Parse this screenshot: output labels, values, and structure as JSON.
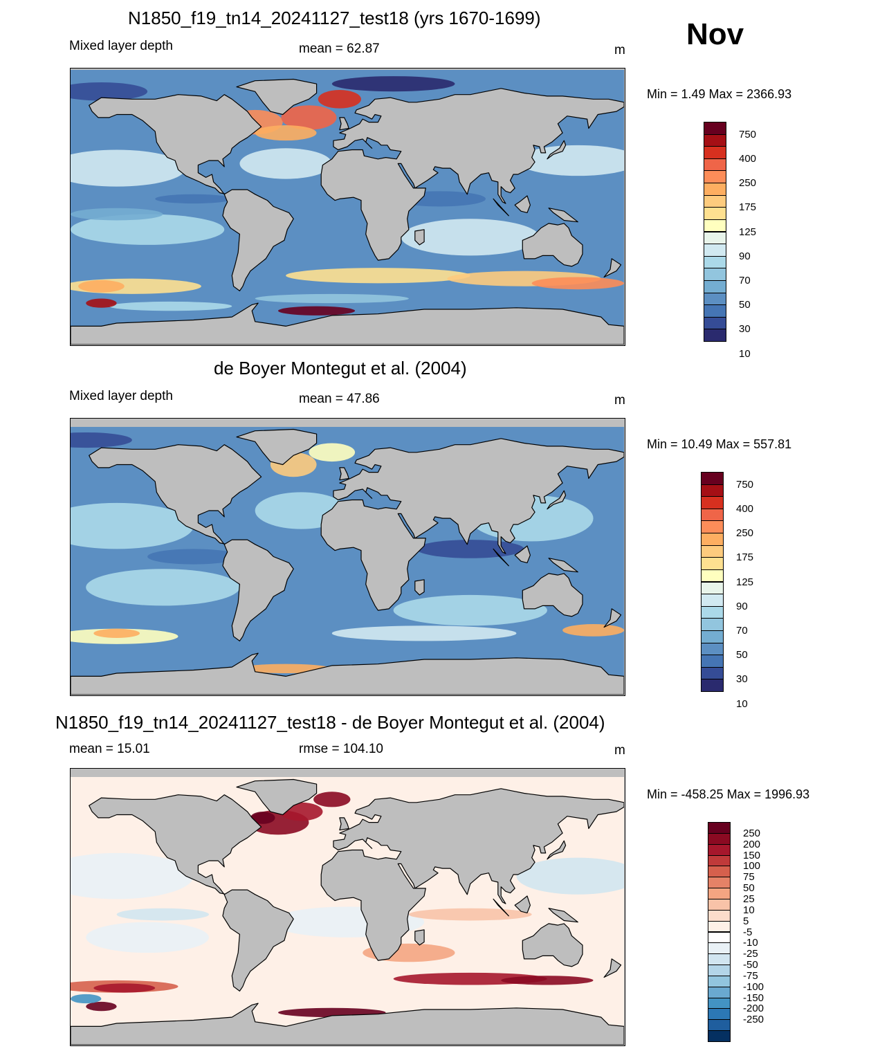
{
  "month": "Nov",
  "panels": [
    {
      "title": "N1850_f19_tn14_20241127_test18 (yrs 1670-1699)",
      "left_label": "Mixed layer depth",
      "center_label": "mean =  62.87",
      "units": "m",
      "minmax": "Min =    1.49 Max = 2366.93",
      "field": "model",
      "colorbar": {
        "labels": [
          "750",
          "400",
          "250",
          "175",
          "125",
          "90",
          "70",
          "50",
          "30",
          "10"
        ],
        "colors": [
          "#67001f",
          "#a50f15",
          "#d7301f",
          "#ef6548",
          "#fc8d59",
          "#fdae61",
          "#fdcb7e",
          "#fee090",
          "#ffffbf",
          "#e8f4ea",
          "#d1e9f1",
          "#abd9e9",
          "#92c5de",
          "#74add1",
          "#5c8fc2",
          "#4575b4",
          "#354c96",
          "#2a2a6e"
        ]
      }
    },
    {
      "title": "de Boyer Montegut et al. (2004)",
      "left_label": "Mixed layer depth",
      "center_label": "mean =  47.86",
      "units": "m",
      "minmax": "Min =  10.49 Max = 557.81",
      "field": "obs",
      "colorbar": {
        "labels": [
          "750",
          "400",
          "250",
          "175",
          "125",
          "90",
          "70",
          "50",
          "30",
          "10"
        ],
        "colors": [
          "#67001f",
          "#a50f15",
          "#d7301f",
          "#ef6548",
          "#fc8d59",
          "#fdae61",
          "#fdcb7e",
          "#fee090",
          "#ffffbf",
          "#e8f4ea",
          "#d1e9f1",
          "#abd9e9",
          "#92c5de",
          "#74add1",
          "#5c8fc2",
          "#4575b4",
          "#354c96",
          "#2a2a6e"
        ]
      }
    },
    {
      "title": "N1850_f19_tn14_20241127_test18 - de Boyer Montegut et al. (2004)",
      "left_label": "mean =  15.01",
      "center_label": "rmse = 104.10",
      "units": "m",
      "minmax": "Min = -458.25 Max = 1996.93",
      "field": "diff",
      "colorbar": {
        "labels": [
          "250",
          "200",
          "150",
          "100",
          "75",
          "50",
          "25",
          "10",
          "5",
          "-5",
          "-10",
          "-25",
          "-50",
          "-75",
          "-100",
          "-150",
          "-200",
          "-250"
        ],
        "colors": [
          "#67001f",
          "#8b0a22",
          "#a6172c",
          "#c03a3a",
          "#d6604d",
          "#e58267",
          "#f4a582",
          "#f8c3a8",
          "#fbdccb",
          "#fef0e7",
          "#ffffff",
          "#e9f1f6",
          "#d1e5f0",
          "#b3d5e8",
          "#92c5de",
          "#6aa9d0",
          "#4393c3",
          "#2c78b5",
          "#1f5e9e",
          "#053061"
        ]
      }
    }
  ],
  "palette": {
    "land": "#bebebe",
    "coast": "#000000"
  }
}
